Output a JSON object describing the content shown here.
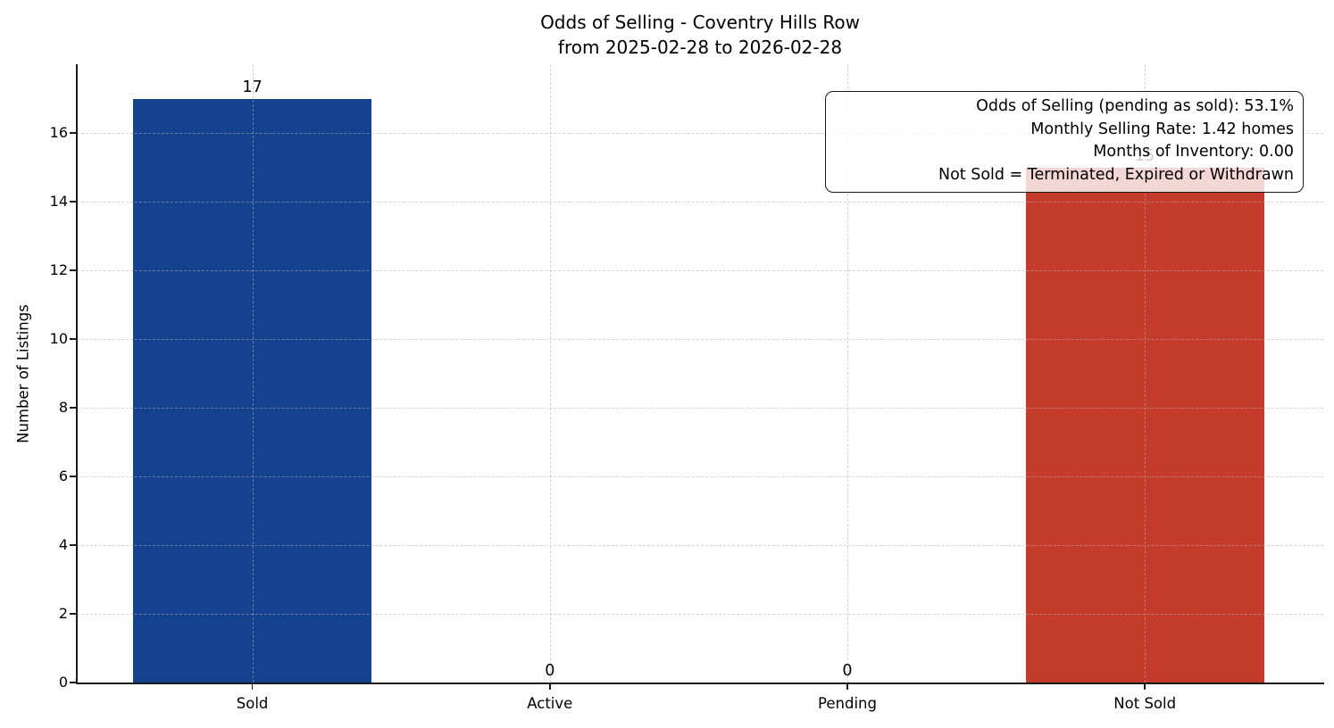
{
  "title": {
    "line1": "Odds of Selling - Coventry Hills Row",
    "line2": "from 2025-02-28 to 2026-02-28"
  },
  "annotation": {
    "lines": [
      "Odds of Selling (pending as sold): 53.1%",
      "Monthly Selling Rate: 1.42 homes",
      "Months of Inventory: 0.00",
      "Not Sold = Terminated, Expired or Withdrawn"
    ]
  },
  "chart_data": {
    "type": "bar",
    "title": "Odds of Selling - Coventry Hills Row\nfrom 2025-02-28 to 2026-02-28",
    "categories": [
      "Sold",
      "Active",
      "Pending",
      "Not Sold"
    ],
    "values": [
      17,
      0,
      0,
      15
    ],
    "bar_labels": [
      "17",
      "0",
      "0",
      "15"
    ],
    "bar_colors": [
      "#14428f",
      "#14428f",
      "#14428f",
      "#c43b2b"
    ],
    "xlabel": "",
    "ylabel": "Number of Listings",
    "yticks": [
      0,
      2,
      4,
      6,
      8,
      10,
      12,
      14,
      16
    ],
    "ylim": [
      0,
      18
    ],
    "grid": "dashed, both axes, drawn above bars",
    "legend_position": "none",
    "stats_box_position": "upper right",
    "grid_color": "#b0b0b0",
    "text_color": "#000000"
  }
}
